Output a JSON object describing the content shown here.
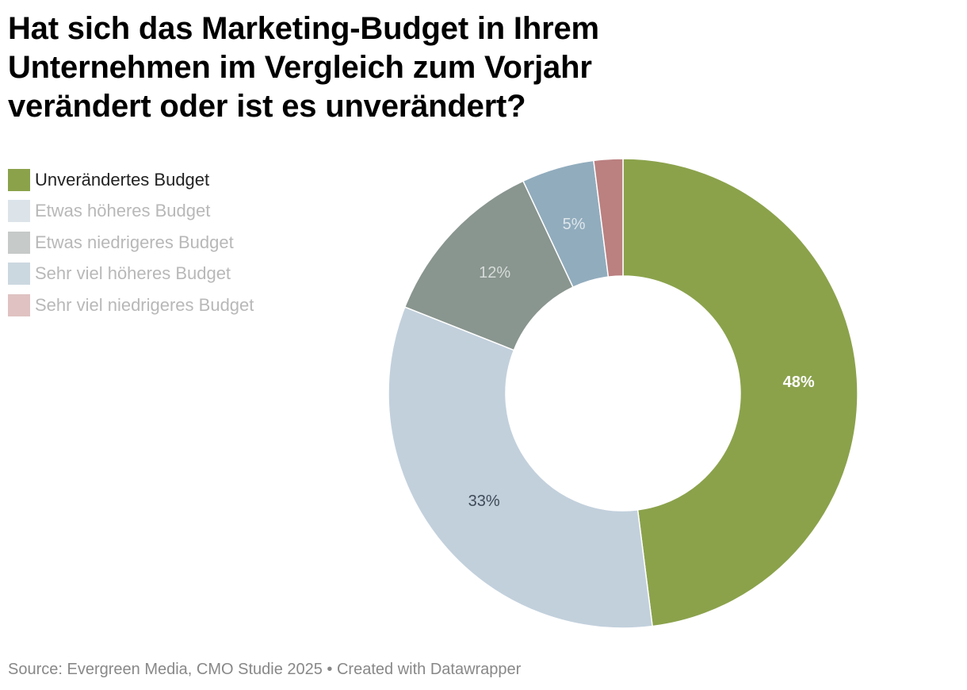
{
  "chart_data": {
    "type": "pie",
    "variant": "donut",
    "title": "Hat sich das Marketing-Budget in Ihrem Unternehmen im Vergleich zum Vorjahr verändert oder ist es unverändert?",
    "highlighted_category": "Unverändertes Budget",
    "legend_position": "top-left",
    "slices": [
      {
        "label": "Unverändertes Budget",
        "value": 48,
        "value_label": "48%",
        "color": "#8ba24b",
        "legend_color": "#8ba24b",
        "label_color": "#ffffff"
      },
      {
        "label": "Sehr viel höheres Budget",
        "value": 33,
        "value_label": "33%",
        "color": "#c2d0dc",
        "legend_color": "#ccd8e0",
        "label_color": "#3f4a57"
      },
      {
        "label": "Etwas niedrigeres Budget",
        "value": 12,
        "value_label": "12%",
        "color": "#89958f",
        "legend_color": "#c6cac8",
        "label_color": "#d6dcd9"
      },
      {
        "label": "Etwas höheres Budget",
        "value": 5,
        "value_label": "5%",
        "color": "#91acbd",
        "legend_color": "#dce4ea",
        "label_color": "#dde6ec"
      },
      {
        "label": "Sehr viel niedrigeres Budget",
        "value": 2,
        "value_label": "",
        "color": "#bb8080",
        "legend_color": "#e0c2c2",
        "label_color": "#ffffff"
      }
    ],
    "legend": [
      {
        "label": "Unverändertes Budget",
        "color": "#8ba24b",
        "text_color": "#222222"
      },
      {
        "label": "Etwas höheres Budget",
        "color": "#dce4ea",
        "text_color": "#b8b8b8"
      },
      {
        "label": "Etwas niedrigeres Budget",
        "color": "#c6cac8",
        "text_color": "#b8b8b8"
      },
      {
        "label": "Sehr viel höheres Budget",
        "color": "#ccd8e0",
        "text_color": "#b8b8b8"
      },
      {
        "label": "Sehr viel niedrigeres Budget",
        "color": "#e0c2c2",
        "text_color": "#b8b8b8"
      }
    ]
  },
  "footer": {
    "source": "Source: Evergreen Media, CMO Studie 2025 • Created with Datawrapper"
  }
}
